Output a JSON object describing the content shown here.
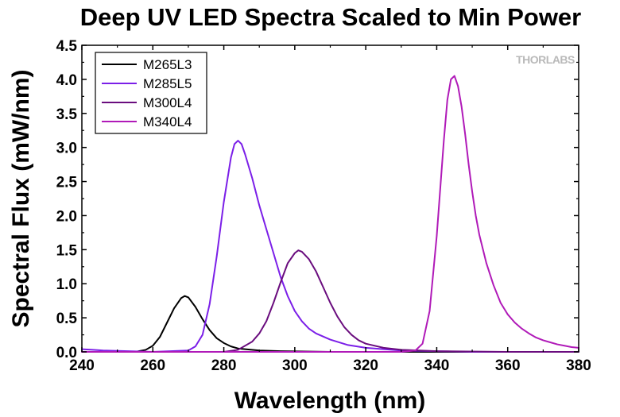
{
  "chart_data": {
    "type": "line",
    "title": "Deep UV LED Spectra Scaled to Min Power",
    "xlabel": "Wavelength (nm)",
    "ylabel": "Spectral Flux (mW/nm)",
    "xlim": [
      240,
      380
    ],
    "ylim": [
      0,
      4.5
    ],
    "x_ticks": [
      "240",
      "260",
      "280",
      "300",
      "320",
      "340",
      "360",
      "380"
    ],
    "y_ticks": [
      "0.0",
      "0.5",
      "1.0",
      "1.5",
      "2.0",
      "2.5",
      "3.0",
      "3.5",
      "4.0",
      "4.5"
    ],
    "grid": false,
    "legend_position": "top-left",
    "watermark": "THORLABS",
    "series": [
      {
        "name": "M265L3",
        "color": "#000000",
        "x": [
          240,
          255,
          258,
          260,
          262,
          264,
          266,
          268,
          269,
          270,
          272,
          274,
          276,
          278,
          280,
          282,
          284,
          286,
          290,
          296,
          310,
          330,
          380
        ],
        "y": [
          0.0,
          0.0,
          0.03,
          0.09,
          0.22,
          0.43,
          0.64,
          0.79,
          0.82,
          0.8,
          0.66,
          0.48,
          0.32,
          0.2,
          0.13,
          0.08,
          0.05,
          0.04,
          0.02,
          0.01,
          0.0,
          0.0,
          0.0
        ]
      },
      {
        "name": "M285L5",
        "color": "#7b1fe8",
        "x": [
          240,
          243,
          246,
          260,
          270,
          272,
          274,
          276,
          278,
          280,
          282,
          283,
          284,
          285,
          286,
          288,
          290,
          292,
          294,
          296,
          298,
          300,
          302,
          304,
          306,
          310,
          315,
          320,
          325,
          330,
          340,
          350,
          380
        ],
        "y": [
          0.04,
          0.03,
          0.02,
          0.0,
          0.02,
          0.08,
          0.25,
          0.7,
          1.4,
          2.2,
          2.85,
          3.05,
          3.1,
          3.05,
          2.9,
          2.55,
          2.15,
          1.8,
          1.45,
          1.1,
          0.82,
          0.6,
          0.45,
          0.34,
          0.27,
          0.18,
          0.1,
          0.06,
          0.04,
          0.02,
          0.01,
          0.0,
          0.0
        ]
      },
      {
        "name": "M300L4",
        "color": "#6a0d7e",
        "x": [
          240,
          280,
          284,
          288,
          290,
          292,
          294,
          296,
          298,
          300,
          301,
          302,
          304,
          306,
          308,
          310,
          312,
          314,
          316,
          318,
          320,
          325,
          330,
          340,
          360,
          380
        ],
        "y": [
          0.0,
          0.0,
          0.03,
          0.15,
          0.27,
          0.45,
          0.72,
          1.02,
          1.3,
          1.45,
          1.49,
          1.47,
          1.36,
          1.18,
          0.95,
          0.72,
          0.52,
          0.36,
          0.25,
          0.17,
          0.12,
          0.06,
          0.03,
          0.01,
          0.0,
          0.0
        ]
      },
      {
        "name": "M340L4",
        "color": "#b01ab8",
        "x": [
          240,
          330,
          334,
          336,
          338,
          340,
          342,
          343,
          344,
          345,
          346,
          347,
          348,
          349,
          350,
          351,
          352,
          354,
          356,
          358,
          360,
          362,
          364,
          366,
          368,
          370,
          372,
          374,
          376,
          378,
          380
        ],
        "y": [
          0.0,
          0.0,
          0.02,
          0.12,
          0.6,
          1.7,
          3.1,
          3.7,
          4.0,
          4.05,
          3.9,
          3.6,
          3.2,
          2.75,
          2.35,
          2.0,
          1.72,
          1.3,
          0.98,
          0.72,
          0.55,
          0.43,
          0.34,
          0.27,
          0.21,
          0.17,
          0.14,
          0.11,
          0.09,
          0.07,
          0.06
        ]
      }
    ]
  }
}
